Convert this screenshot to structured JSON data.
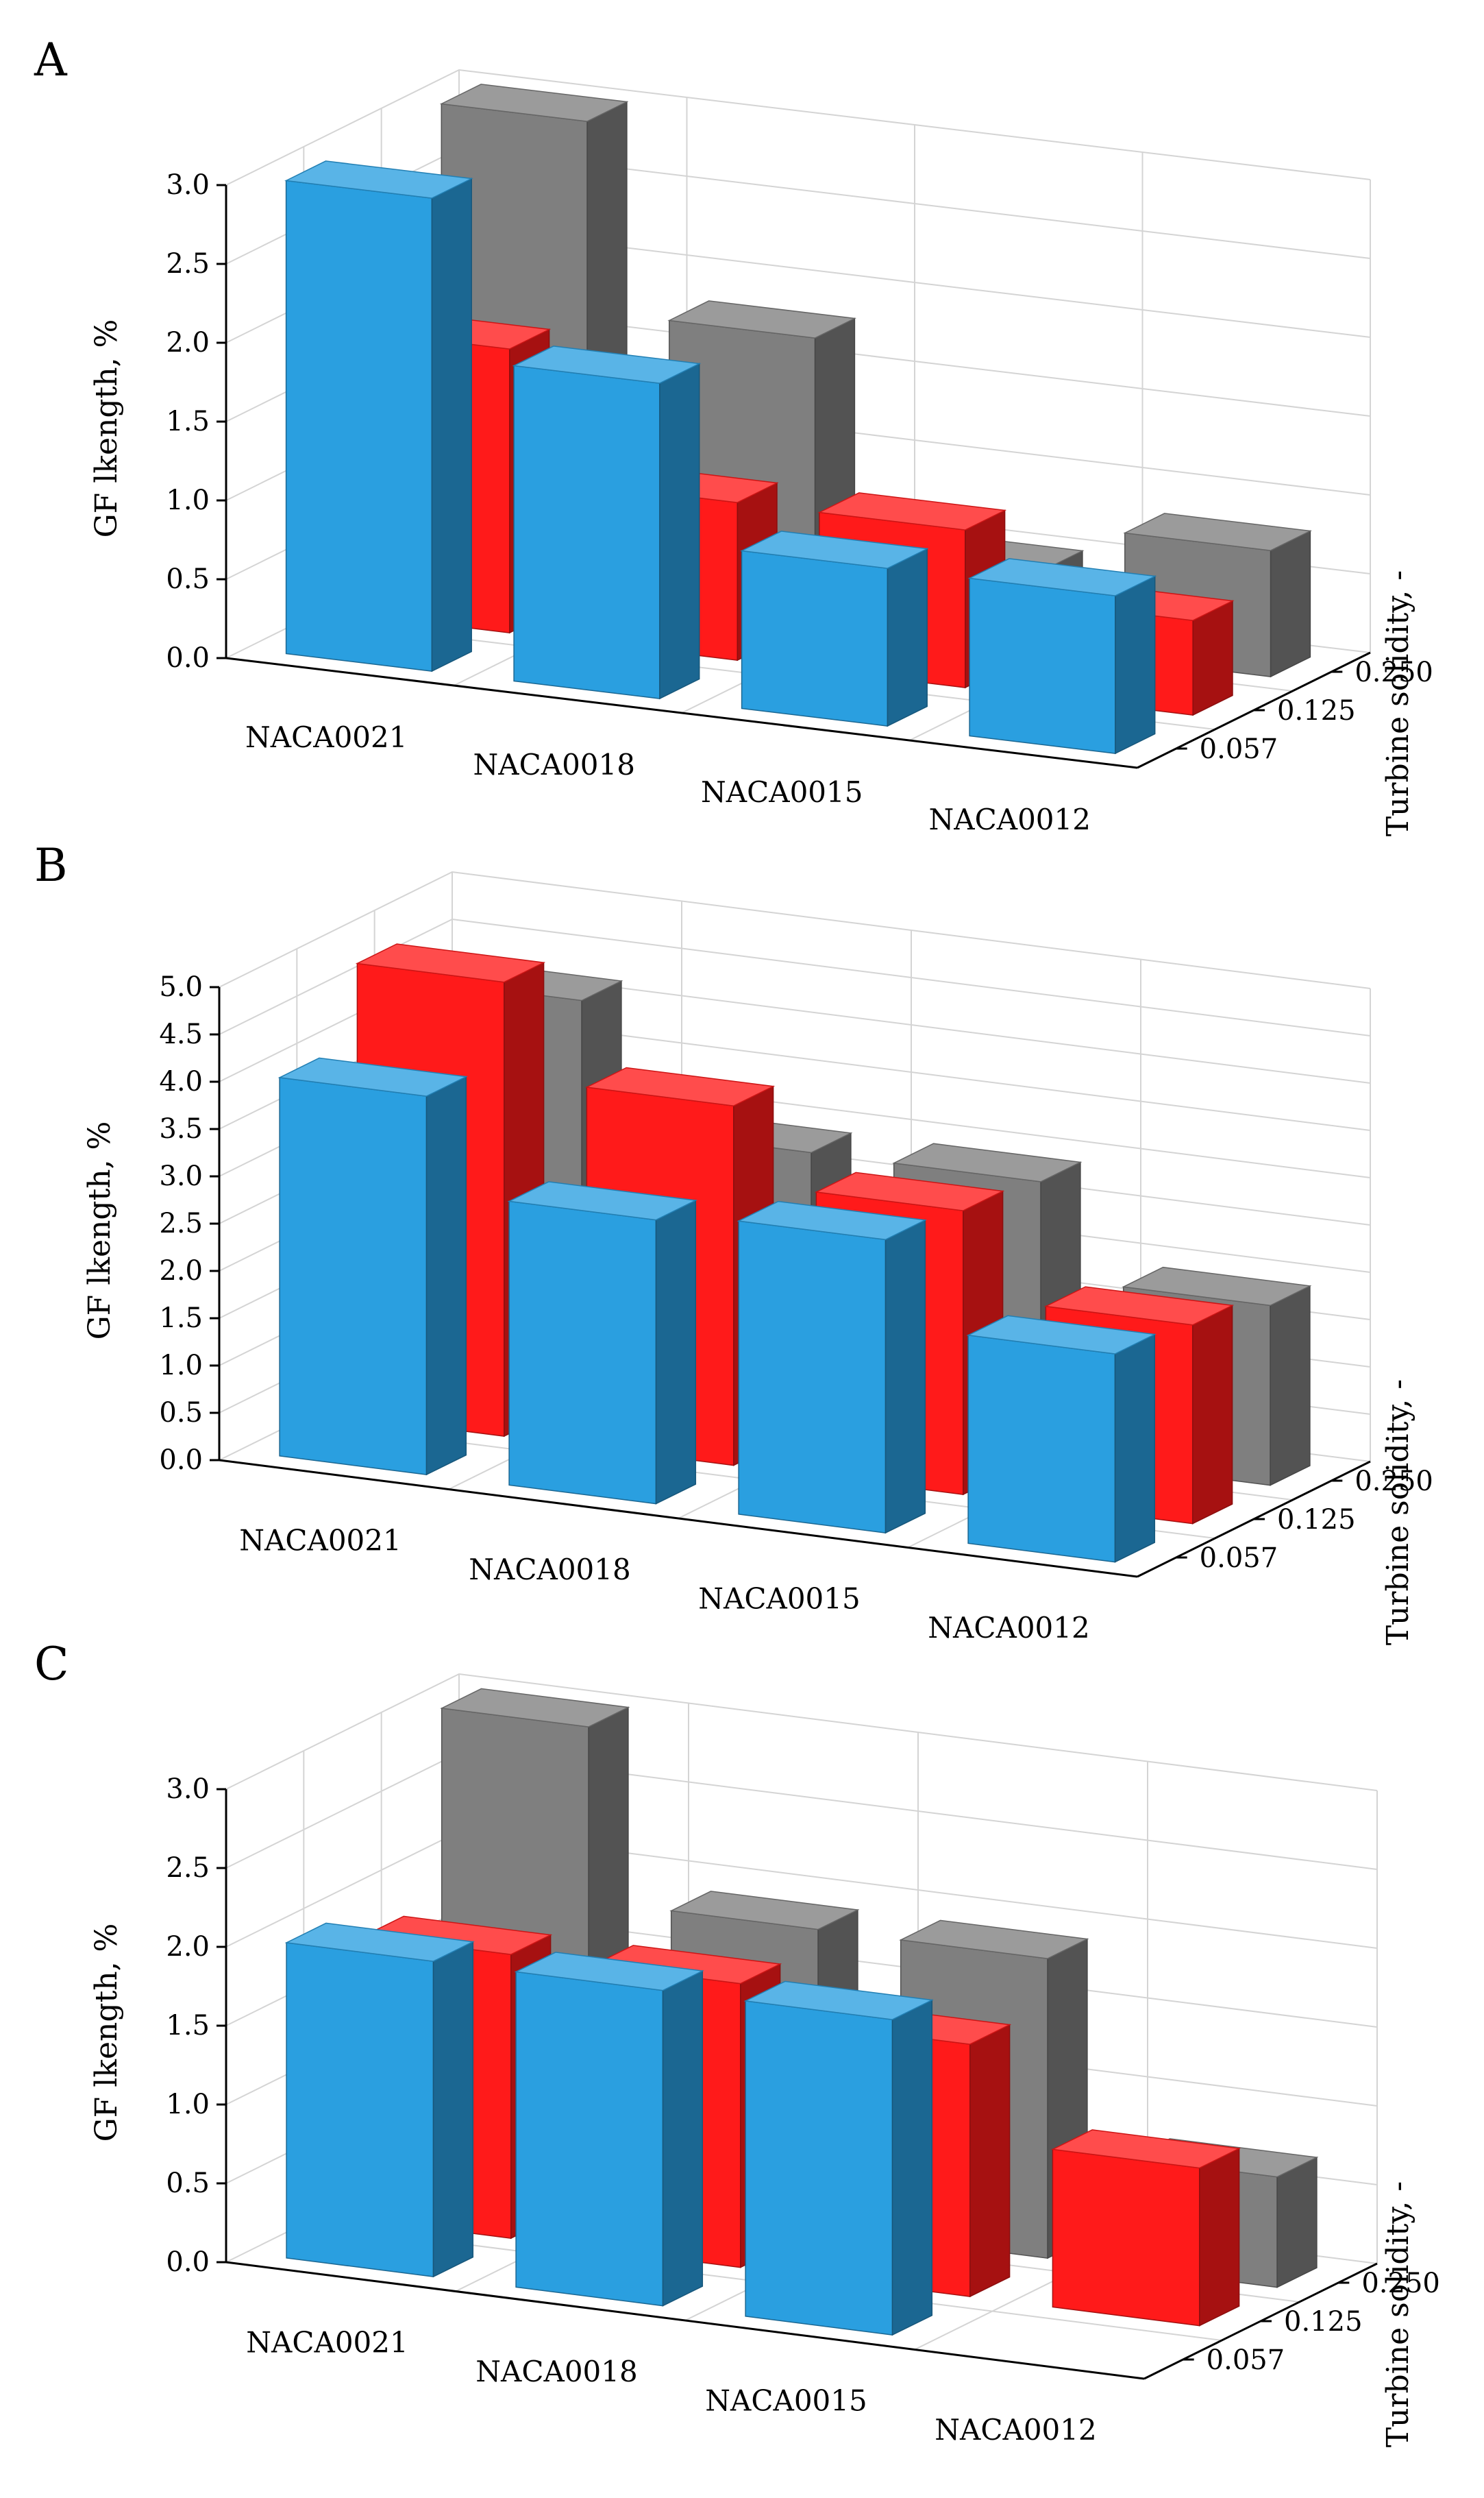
{
  "figure": {
    "z_categories": [
      "0.057",
      "0.125",
      "0.250"
    ],
    "z_title": "Turbine solidity, -",
    "y_title": "GF lkength, %",
    "series_colors": {
      "0.057": "#2a9fe0",
      "0.125": "#ff1a1a",
      "0.250": "#7f7f7f"
    }
  },
  "chart_data": [
    {
      "panel": "A",
      "type": "bar",
      "title": "",
      "categories": [
        "NACA0021",
        "NACA0018",
        "NACA0015",
        "NACA0012"
      ],
      "series": [
        {
          "name": "0.057",
          "values": [
            3.0,
            2.0,
            1.0,
            1.0
          ]
        },
        {
          "name": "0.125",
          "values": [
            1.8,
            1.0,
            1.0,
            0.6
          ]
        },
        {
          "name": "0.250",
          "values": [
            3.0,
            1.8,
            0.5,
            0.8
          ]
        }
      ],
      "ylabel": "GF lkength, %",
      "zlabel": "Turbine solidity, -",
      "ylim": [
        0,
        3.0
      ],
      "yticks": [
        "0.0",
        "0.5",
        "1.0",
        "1.5",
        "2.0",
        "2.5",
        "3.0"
      ]
    },
    {
      "panel": "B",
      "type": "bar",
      "title": "",
      "categories": [
        "NACA0021",
        "NACA0018",
        "NACA0015",
        "NACA0012"
      ],
      "series": [
        {
          "name": "0.057",
          "values": [
            4.0,
            3.0,
            3.1,
            2.2
          ]
        },
        {
          "name": "0.125",
          "values": [
            4.8,
            3.8,
            3.0,
            2.1
          ]
        },
        {
          "name": "0.250",
          "values": [
            4.2,
            2.9,
            2.9,
            1.9
          ]
        }
      ],
      "ylabel": "GF lkength, %",
      "zlabel": "Turbine solidity, -",
      "ylim": [
        0,
        5.0
      ],
      "yticks": [
        "0.0",
        "0.5",
        "1.0",
        "1.5",
        "2.0",
        "2.5",
        "3.0",
        "3.5",
        "4.0",
        "4.5",
        "5.0"
      ]
    },
    {
      "panel": "C",
      "type": "bar",
      "title": "",
      "categories": [
        "NACA0021",
        "NACA0018",
        "NACA0015",
        "NACA0012"
      ],
      "series": [
        {
          "name": "0.057",
          "values": [
            2.0,
            2.0,
            2.0,
            0.0
          ]
        },
        {
          "name": "0.125",
          "values": [
            1.8,
            1.8,
            1.6,
            1.0
          ]
        },
        {
          "name": "0.250",
          "values": [
            3.0,
            1.9,
            1.9,
            0.7
          ]
        }
      ],
      "ylabel": "GF lkength, %",
      "zlabel": "Turbine solidity, -",
      "ylim": [
        0,
        3.0
      ],
      "yticks": [
        "0.0",
        "0.5",
        "1.0",
        "1.5",
        "2.0",
        "2.5",
        "3.0"
      ]
    }
  ]
}
